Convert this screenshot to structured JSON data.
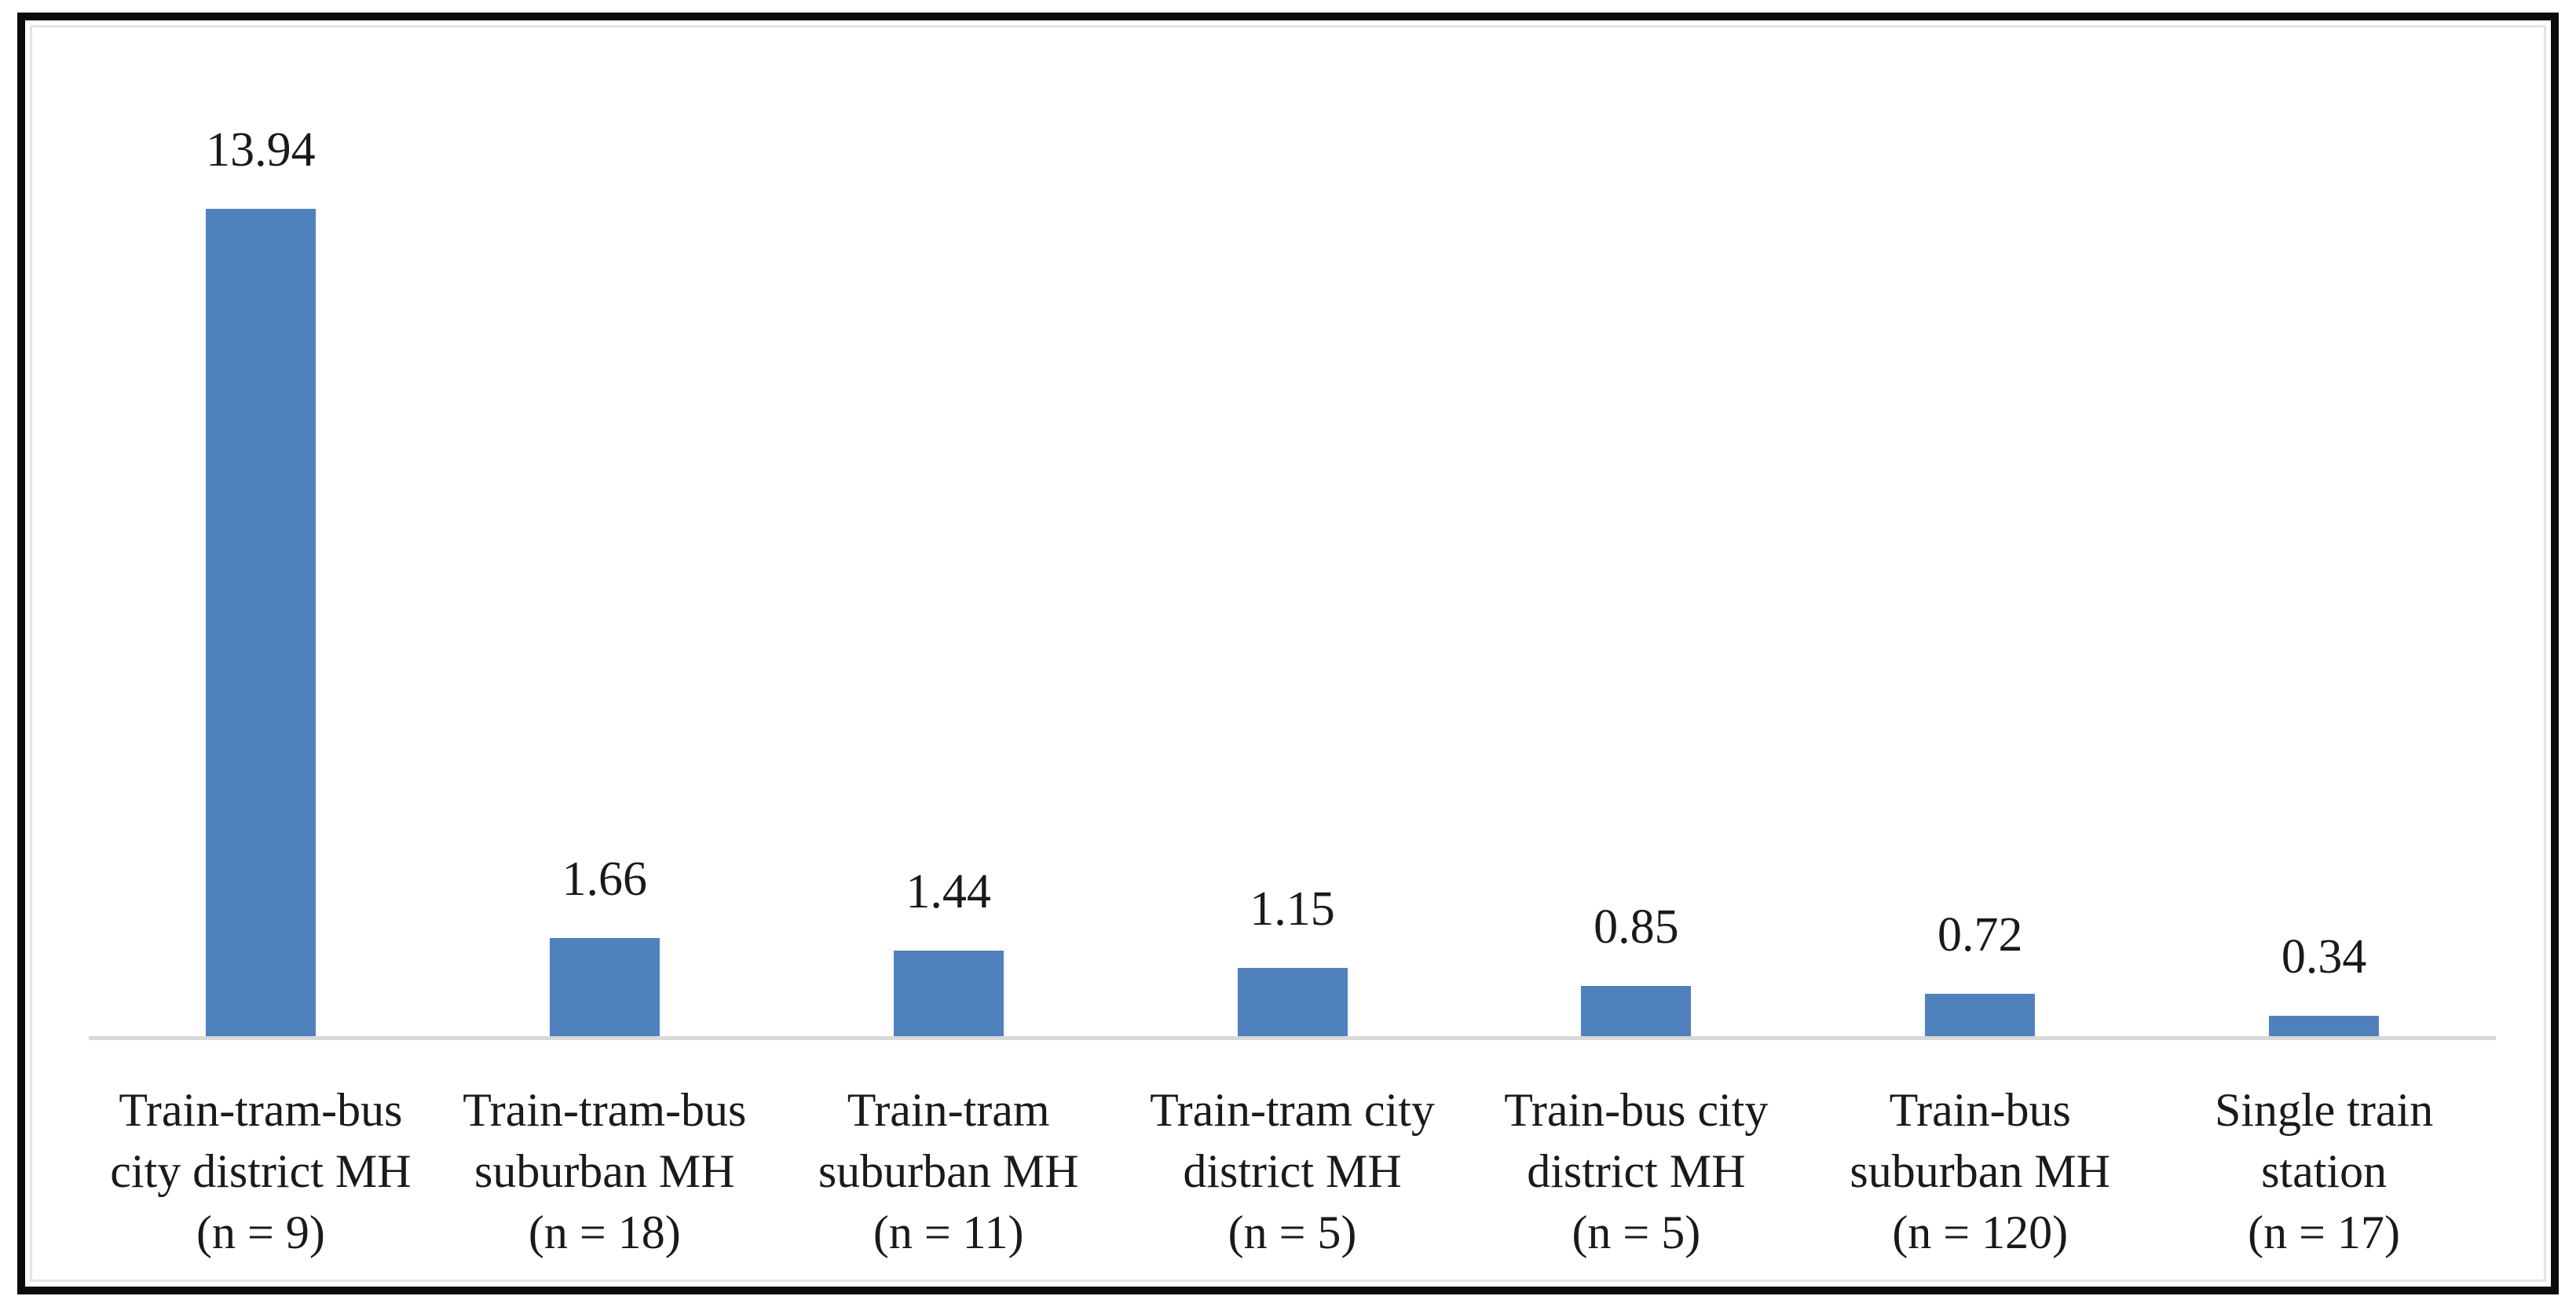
{
  "chart_data": {
    "type": "bar",
    "title": "",
    "xlabel": "",
    "ylabel": "",
    "ylim": [
      0,
      17
    ],
    "grid": false,
    "legend": false,
    "bar_color": "#4f81bd",
    "axis_line_color": "#d9d9d9",
    "text_color": "#1a1a1a",
    "categories": [
      "Train-tram-bus\ncity district MH\n(n = 9)",
      "Train-tram-bus\nsuburban MH\n(n = 18)",
      "Train-tram\nsuburban MH\n(n = 11)",
      "Train-tram city\ndistrict MH\n(n = 5)",
      "Train-bus city\ndistrict MH\n(n = 5)",
      "Train-bus\nsuburban MH\n(n = 120)",
      "Single train\nstation\n(n = 17)"
    ],
    "sample_sizes": [
      9,
      18,
      11,
      5,
      5,
      120,
      17
    ],
    "values": [
      13.94,
      1.66,
      1.44,
      1.15,
      0.85,
      0.72,
      0.34
    ],
    "value_labels": [
      "13.94",
      "1.66",
      "1.44",
      "1.15",
      "0.85",
      "0.72",
      "0.34"
    ]
  }
}
